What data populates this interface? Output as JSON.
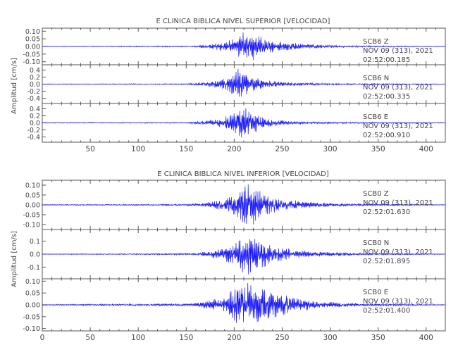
{
  "colors": {
    "trace": "#1a1aff",
    "axis": "#555555",
    "text": "#444444"
  },
  "chart_data": [
    {
      "type": "line",
      "title": "E CLINICA BIBLICA NIVEL SUPERIOR [VELOCIDAD]",
      "ylabel": "Amplitud [cm/s]",
      "xlabel": "",
      "xlim": [
        0,
        420
      ],
      "xticks": [
        50,
        100,
        150,
        200,
        250,
        300,
        350,
        400
      ],
      "grid": false,
      "traces": [
        {
          "station": "SCB6",
          "component": "Z",
          "date": "NOV 09 (313), 2021",
          "time": "02:52:00.185",
          "ylim": [
            -0.12,
            0.12
          ],
          "yticks": [
            "0.10",
            "0.05",
            "0.00",
            "-0.05",
            "-0.10"
          ],
          "yvals": [
            0.1,
            0.05,
            0.0,
            -0.05,
            -0.1
          ],
          "envelope": [
            [
              0,
              0.002
            ],
            [
              155,
              0.004
            ],
            [
              170,
              0.012
            ],
            [
              190,
              0.03
            ],
            [
              205,
              0.07
            ],
            [
              212,
              0.12
            ],
            [
              218,
              0.1
            ],
            [
              230,
              0.06
            ],
            [
              250,
              0.03
            ],
            [
              280,
              0.015
            ],
            [
              320,
              0.006
            ],
            [
              420,
              0.002
            ]
          ]
        },
        {
          "station": "SCB6",
          "component": "N",
          "date": "NOV 09 (313), 2021",
          "time": "02:52:00.335",
          "ylim": [
            -0.55,
            0.55
          ],
          "yticks": [
            "0.4",
            "0.2",
            "0.0",
            "-0.2",
            "-0.4"
          ],
          "yvals": [
            0.4,
            0.2,
            0.0,
            -0.2,
            -0.4
          ],
          "envelope": [
            [
              0,
              0.01
            ],
            [
              150,
              0.015
            ],
            [
              165,
              0.05
            ],
            [
              185,
              0.12
            ],
            [
              200,
              0.35
            ],
            [
              207,
              0.5
            ],
            [
              215,
              0.3
            ],
            [
              230,
              0.12
            ],
            [
              260,
              0.05
            ],
            [
              300,
              0.025
            ],
            [
              420,
              0.01
            ]
          ]
        },
        {
          "station": "SCB6",
          "component": "E",
          "date": "NOV 09 (313), 2021",
          "time": "02:52:00.910",
          "ylim": [
            -0.55,
            0.55
          ],
          "yticks": [
            "0.4",
            "0.2",
            "0.0",
            "-0.2",
            "-0.4"
          ],
          "yvals": [
            0.4,
            0.2,
            0.0,
            -0.2,
            -0.4
          ],
          "envelope": [
            [
              0,
              0.01
            ],
            [
              150,
              0.015
            ],
            [
              165,
              0.05
            ],
            [
              185,
              0.12
            ],
            [
              200,
              0.3
            ],
            [
              210,
              0.5
            ],
            [
              220,
              0.3
            ],
            [
              235,
              0.12
            ],
            [
              260,
              0.05
            ],
            [
              300,
              0.025
            ],
            [
              420,
              0.01
            ]
          ]
        }
      ]
    },
    {
      "type": "line",
      "title": "E CLINICA BIBLICA NIVEL INFERIOR [VELOCIDAD]",
      "ylabel": "Amplitud [cm/s]",
      "xlabel": "",
      "xlim": [
        0,
        420
      ],
      "xticks": [
        0,
        50,
        100,
        150,
        200,
        250,
        300,
        350,
        400
      ],
      "grid": false,
      "traces": [
        {
          "station": "SCB0",
          "component": "Z",
          "date": "NOV 09 (313), 2021",
          "time": "02:52:01.630",
          "ylim": [
            -0.125,
            0.125
          ],
          "yticks": [
            "0.10",
            "0.05",
            "0.00",
            "-0.05",
            "-0.10"
          ],
          "yvals": [
            0.1,
            0.05,
            0.0,
            -0.05,
            -0.1
          ],
          "envelope": [
            [
              0,
              0.002
            ],
            [
              155,
              0.004
            ],
            [
              170,
              0.012
            ],
            [
              190,
              0.03
            ],
            [
              205,
              0.07
            ],
            [
              212,
              0.13
            ],
            [
              220,
              0.1
            ],
            [
              230,
              0.06
            ],
            [
              250,
              0.03
            ],
            [
              280,
              0.015
            ],
            [
              320,
              0.006
            ],
            [
              420,
              0.002
            ]
          ]
        },
        {
          "station": "SCB0",
          "component": "N",
          "date": "NOV 09 (313), 2021",
          "time": "02:52:01.895",
          "ylim": [
            -0.19,
            0.19
          ],
          "yticks": [
            "0.1",
            "0.0",
            "-0.1"
          ],
          "yvals": [
            0.1,
            0.0,
            -0.1
          ],
          "envelope": [
            [
              0,
              0.002
            ],
            [
              155,
              0.006
            ],
            [
              170,
              0.02
            ],
            [
              190,
              0.05
            ],
            [
              205,
              0.12
            ],
            [
              210,
              0.18
            ],
            [
              225,
              0.12
            ],
            [
              240,
              0.07
            ],
            [
              260,
              0.04
            ],
            [
              290,
              0.02
            ],
            [
              330,
              0.008
            ],
            [
              420,
              0.002
            ]
          ]
        },
        {
          "station": "SCB0",
          "component": "E",
          "date": "NOV 09 (313), 2021",
          "time": "02:52:01.400",
          "ylim": [
            -0.11,
            0.11
          ],
          "yticks": [
            "0.10",
            "0.05",
            "0.00",
            "-0.05",
            "-0.10"
          ],
          "yvals": [
            0.1,
            0.05,
            0.0,
            -0.05,
            -0.1
          ],
          "envelope": [
            [
              0,
              0.002
            ],
            [
              155,
              0.006
            ],
            [
              170,
              0.015
            ],
            [
              190,
              0.04
            ],
            [
              205,
              0.09
            ],
            [
              212,
              0.1
            ],
            [
              225,
              0.08
            ],
            [
              245,
              0.06
            ],
            [
              265,
              0.03
            ],
            [
              290,
              0.015
            ],
            [
              330,
              0.006
            ],
            [
              420,
              0.002
            ]
          ]
        }
      ]
    }
  ]
}
